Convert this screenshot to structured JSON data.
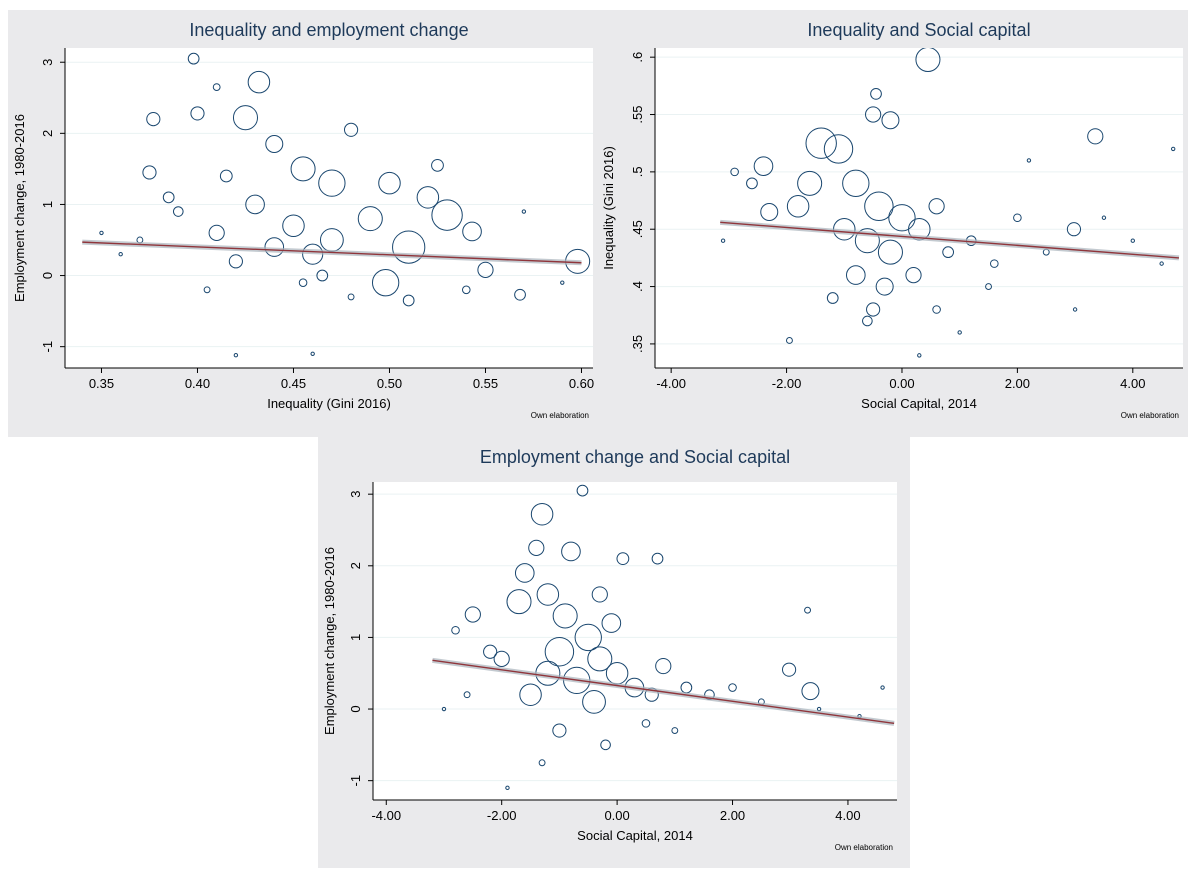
{
  "chart_data": [
    {
      "type": "scatter",
      "title": "Inequality and employment change",
      "xlabel": "Inequality (Gini 2016)",
      "ylabel": "Employment change, 1980-2016",
      "note": "Own elaboration",
      "xlim": [
        0.331,
        0.606
      ],
      "ylim": [
        -1.3,
        3.2
      ],
      "xticks": [
        0.35,
        {
          "value": 0.4,
          "label": "0.40"
        },
        0.45,
        {
          "value": 0.5,
          "label": "0.50"
        },
        0.55,
        {
          "value": 0.6,
          "label": "0.60"
        }
      ],
      "yticks": [
        -1,
        0,
        1,
        2,
        3
      ],
      "grid": true,
      "color": "#1a476f",
      "x": [
        0.398,
        0.432,
        0.425,
        0.377,
        0.4,
        0.41,
        0.48,
        0.44,
        0.455,
        0.525,
        0.52,
        0.543,
        0.53,
        0.51,
        0.498,
        0.55,
        0.598,
        0.568,
        0.47,
        0.43,
        0.41,
        0.45,
        0.46,
        0.44,
        0.42,
        0.47,
        0.49,
        0.39,
        0.37,
        0.36,
        0.35,
        0.405,
        0.455,
        0.48,
        0.51,
        0.54,
        0.46,
        0.42,
        0.57,
        0.59,
        0.385,
        0.415,
        0.465,
        0.5,
        0.375
      ],
      "y": [
        3.05,
        2.72,
        2.22,
        2.2,
        2.28,
        2.65,
        2.05,
        1.85,
        1.5,
        1.55,
        1.1,
        0.62,
        0.85,
        0.4,
        -0.1,
        0.08,
        0.2,
        -0.27,
        1.3,
        1.0,
        0.6,
        0.7,
        0.3,
        0.4,
        0.2,
        0.5,
        0.8,
        0.9,
        0.5,
        0.3,
        0.6,
        -0.2,
        -0.1,
        -0.3,
        -0.35,
        -0.2,
        -1.1,
        -1.12,
        0.9,
        -0.1,
        1.1,
        1.4,
        0.0,
        1.3,
        1.45
      ],
      "size": [
        10,
        40,
        50,
        15,
        15,
        4,
        15,
        25,
        50,
        12,
        40,
        30,
        80,
        90,
        60,
        20,
        50,
        10,
        60,
        30,
        20,
        40,
        35,
        30,
        15,
        45,
        50,
        8,
        3,
        1,
        1,
        3,
        5,
        3,
        10,
        5,
        1,
        1,
        1,
        1,
        10,
        12,
        10,
        40,
        15
      ],
      "fit_line": {
        "x": [
          0.34,
          0.6
        ],
        "y": [
          0.47,
          0.18
        ],
        "color": "#90353b"
      }
    },
    {
      "type": "scatter",
      "title": "Inequality and Social capital",
      "xlabel": "Social Capital, 2014",
      "ylabel": "Inequality (Gini 2016)",
      "note": "Own elaboration",
      "xlim": [
        -4.28,
        4.87
      ],
      "ylim": [
        0.329,
        0.608
      ],
      "xticks": [
        {
          "value": -4,
          "label": "-4.00"
        },
        {
          "value": -2,
          "label": "-2.00"
        },
        {
          "value": 0,
          "label": "0.00"
        },
        {
          "value": 2,
          "label": "2.00"
        },
        {
          "value": 4,
          "label": "4.00"
        }
      ],
      "yticks": [
        {
          "value": 0.35,
          "label": ".35"
        },
        {
          "value": 0.4,
          "label": ".4"
        },
        {
          "value": 0.45,
          "label": ".45"
        },
        {
          "value": 0.5,
          "label": ".5"
        },
        {
          "value": 0.55,
          "label": ".55"
        },
        {
          "value": 0.6,
          "label": ".6"
        }
      ],
      "grid": true,
      "color": "#1a476f",
      "x": [
        0.45,
        -1.4,
        -1.1,
        3.35,
        -0.45,
        -0.5,
        -0.2,
        -2.4,
        -2.3,
        -1.8,
        -1.6,
        -0.8,
        -0.4,
        0.0,
        -0.6,
        -1.0,
        -0.2,
        0.3,
        0.6,
        -0.8,
        -0.3,
        0.2,
        -0.5,
        -1.2,
        0.8,
        1.2,
        1.6,
        2.0,
        2.5,
        2.98,
        3.5,
        4.0,
        4.5,
        4.7,
        2.2,
        1.5,
        -1.95,
        -2.9,
        -2.6,
        -0.6,
        0.6,
        1.0,
        3.0,
        -3.1,
        0.3
      ],
      "y": [
        0.598,
        0.525,
        0.52,
        0.531,
        0.568,
        0.55,
        0.545,
        0.505,
        0.465,
        0.47,
        0.49,
        0.49,
        0.47,
        0.46,
        0.44,
        0.45,
        0.43,
        0.45,
        0.47,
        0.41,
        0.4,
        0.41,
        0.38,
        0.39,
        0.43,
        0.44,
        0.42,
        0.46,
        0.43,
        0.45,
        0.46,
        0.44,
        0.42,
        0.52,
        0.51,
        0.4,
        0.353,
        0.5,
        0.49,
        0.37,
        0.38,
        0.36,
        0.38,
        0.44,
        0.34
      ],
      "size": [
        50,
        80,
        70,
        20,
        10,
        20,
        25,
        30,
        25,
        40,
        50,
        60,
        70,
        60,
        50,
        40,
        50,
        40,
        20,
        30,
        25,
        20,
        15,
        10,
        10,
        8,
        5,
        5,
        3,
        15,
        1,
        1,
        1,
        1,
        1,
        3,
        3,
        5,
        10,
        8,
        5,
        1,
        1,
        1,
        1
      ],
      "fit_line": {
        "x": [
          -3.15,
          4.8
        ],
        "y": [
          0.456,
          0.425
        ],
        "color": "#90353b"
      }
    },
    {
      "type": "scatter",
      "title": "Employment change and Social capital",
      "xlabel": "Social Capital, 2014",
      "ylabel": "Employment change, 1980-2016",
      "note": "Own elaboration",
      "xlim": [
        -4.23,
        4.85
      ],
      "ylim": [
        -1.27,
        3.17
      ],
      "xticks": [
        {
          "value": -4,
          "label": "-4.00"
        },
        {
          "value": -2,
          "label": "-2.00"
        },
        {
          "value": 0,
          "label": "0.00"
        },
        {
          "value": 2,
          "label": "2.00"
        },
        {
          "value": 4,
          "label": "4.00"
        }
      ],
      "yticks": [
        -1,
        0,
        1,
        2,
        3
      ],
      "grid": true,
      "color": "#1a476f",
      "x": [
        -0.6,
        -1.3,
        -0.8,
        -1.6,
        -1.4,
        -1.7,
        -1.2,
        -0.9,
        -0.5,
        -1.0,
        -0.3,
        0.0,
        -0.7,
        -1.2,
        -1.5,
        -0.4,
        0.3,
        0.8,
        0.6,
        1.2,
        1.6,
        2.0,
        2.98,
        3.35,
        3.3,
        2.5,
        3.5,
        4.2,
        4.6,
        -2.5,
        -2.2,
        -2.0,
        -2.8,
        -1.0,
        -0.2,
        0.5,
        -1.3,
        -1.9,
        -2.6,
        -3.0,
        1.0,
        0.7,
        0.1,
        -0.3,
        -0.1
      ],
      "y": [
        3.05,
        2.72,
        2.2,
        1.9,
        2.25,
        1.5,
        1.6,
        1.3,
        1.0,
        0.8,
        0.7,
        0.5,
        0.4,
        0.5,
        0.2,
        0.1,
        0.3,
        0.6,
        0.2,
        0.3,
        0.2,
        0.3,
        0.55,
        0.25,
        1.38,
        0.1,
        0.0,
        -0.1,
        0.3,
        1.32,
        0.8,
        0.7,
        1.1,
        -0.3,
        -0.5,
        -0.2,
        -0.75,
        -1.1,
        0.2,
        0.0,
        -0.3,
        2.1,
        2.1,
        1.6,
        1.2
      ],
      "size": [
        10,
        40,
        30,
        30,
        20,
        50,
        40,
        50,
        60,
        70,
        50,
        40,
        60,
        50,
        40,
        45,
        30,
        20,
        15,
        10,
        8,
        5,
        15,
        25,
        3,
        3,
        1,
        1,
        1,
        20,
        15,
        20,
        5,
        15,
        8,
        5,
        3,
        1,
        3,
        1,
        3,
        10,
        12,
        20,
        30
      ],
      "fit_line": {
        "x": [
          -3.2,
          4.8
        ],
        "y": [
          0.68,
          -0.2
        ],
        "color": "#90353b"
      }
    }
  ]
}
